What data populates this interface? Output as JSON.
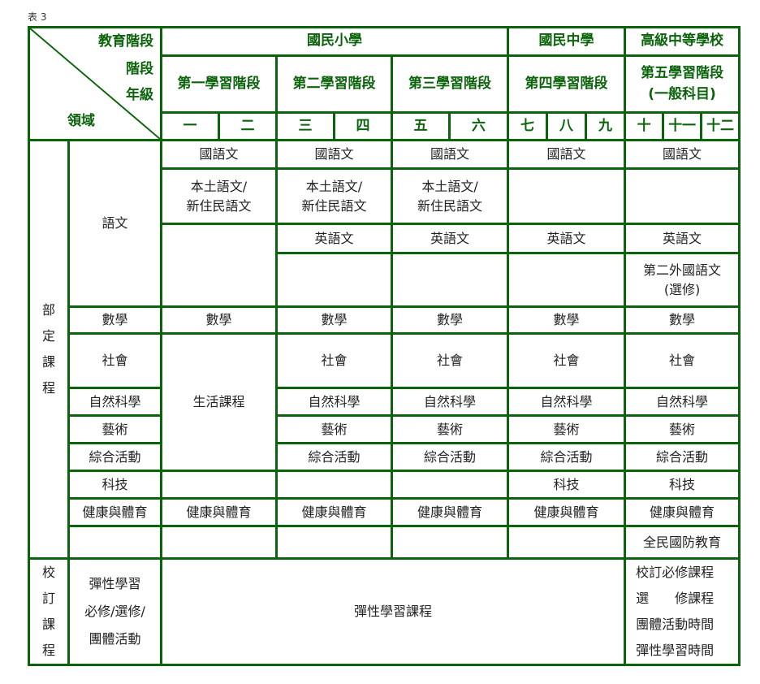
{
  "caption": "表 3",
  "corner": {
    "edu_stage": "教育階段",
    "stage": "階段",
    "grade": "年級",
    "domain": "領域"
  },
  "levels": [
    "國民小學",
    "國民中學",
    "高級中等學校"
  ],
  "stages": [
    "第一學習階段",
    "第二學習階段",
    "第三學習階段",
    "第四學習階段",
    "第五學習階段"
  ],
  "stage5_sub": "(一般科目)",
  "grades": [
    "一",
    "二",
    "三",
    "四",
    "五",
    "六",
    "七",
    "八",
    "九",
    "十",
    "十一",
    "十二"
  ],
  "sections": {
    "required": "部定課程",
    "school": "校訂課程"
  },
  "lang": {
    "label": "語文",
    "chinese": "國語文",
    "native": [
      "本土語文/",
      "新住民語文"
    ],
    "english": "英語文",
    "second_foreign": [
      "第二外國語文",
      "(選修)"
    ]
  },
  "math": {
    "label": "數學",
    "value": "數學"
  },
  "social": {
    "label": "社會",
    "value": "社會"
  },
  "life": "生活課程",
  "science": {
    "label": "自然科學",
    "value": "自然科學"
  },
  "arts": {
    "label": "藝術",
    "value": "藝術"
  },
  "integrative": {
    "label": "綜合活動",
    "value": "綜合活動"
  },
  "tech": {
    "label": "科技",
    "value": "科技"
  },
  "health": {
    "label": "健康與體育",
    "value": "健康與體育"
  },
  "defense": "全民國防教育",
  "flex": {
    "label": [
      "彈性學習",
      "必修/選修/",
      "團體活動"
    ],
    "course": "彈性學習課程",
    "senior": [
      "校訂必修課程",
      "選　　修課程",
      "團體活動時間",
      "彈性學習時間"
    ]
  }
}
